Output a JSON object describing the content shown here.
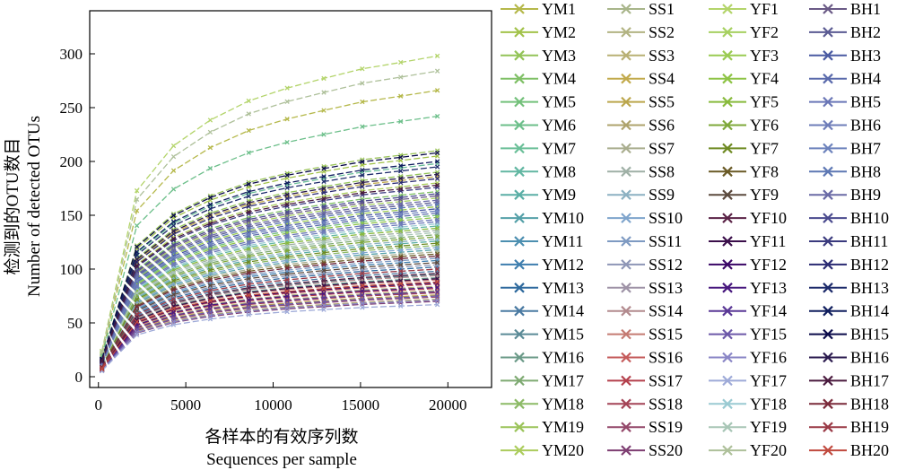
{
  "chart_data": {
    "type": "line",
    "xlabel_cn": "各样本的有效序列数",
    "xlabel_en": "Sequences per sample",
    "ylabel_cn": "检测到的OTU数目",
    "ylabel_en": "Number of detected OTUs",
    "x_ticks": [
      0,
      5000,
      10000,
      15000,
      20000
    ],
    "x_tick_labels": [
      "0",
      "5000",
      "10000",
      "15000",
      "20000"
    ],
    "y_ticks": [
      0,
      50,
      100,
      150,
      200,
      250,
      300
    ],
    "y_tick_labels": [
      "0",
      "50",
      "100",
      "150",
      "200",
      "250",
      "300"
    ],
    "xlim": [
      -500,
      22500
    ],
    "ylim": [
      -10,
      340
    ],
    "grid": false,
    "legend_position": "right",
    "x": [
      200,
      2200,
      4300,
      6400,
      8600,
      10800,
      12900,
      15100,
      17300,
      19400
    ],
    "growth_shape": [
      0.08,
      0.58,
      0.72,
      0.8,
      0.86,
      0.9,
      0.93,
      0.96,
      0.98,
      1.0
    ],
    "series": [
      {
        "name": "YM1",
        "color": "#b5b84a",
        "final": 266
      },
      {
        "name": "YM2",
        "color": "#a2c24a",
        "final": 205
      },
      {
        "name": "YM3",
        "color": "#93c458",
        "final": 190
      },
      {
        "name": "YM4",
        "color": "#7fc066",
        "final": 172
      },
      {
        "name": "YM5",
        "color": "#73c07a",
        "final": 150
      },
      {
        "name": "YM6",
        "color": "#6cbf8a",
        "final": 242
      },
      {
        "name": "YM7",
        "color": "#6abf98",
        "final": 198
      },
      {
        "name": "YM8",
        "color": "#62b7a2",
        "final": 140
      },
      {
        "name": "YM9",
        "color": "#5aaea5",
        "final": 126
      },
      {
        "name": "YM10",
        "color": "#54a0a8",
        "final": 118
      },
      {
        "name": "YM11",
        "color": "#4c8fb0",
        "final": 112
      },
      {
        "name": "YM12",
        "color": "#3e7eae",
        "final": 108
      },
      {
        "name": "YM13",
        "color": "#2f6a9e",
        "final": 102
      },
      {
        "name": "YM14",
        "color": "#4a7aa2",
        "final": 98
      },
      {
        "name": "YM15",
        "color": "#5a8a96",
        "final": 95
      },
      {
        "name": "YM16",
        "color": "#6b9a88",
        "final": 92
      },
      {
        "name": "YM17",
        "color": "#7eaa72",
        "final": 132
      },
      {
        "name": "YM18",
        "color": "#8cba66",
        "final": 122
      },
      {
        "name": "YM19",
        "color": "#9bc45a",
        "final": 210
      },
      {
        "name": "YM20",
        "color": "#abcc5c",
        "final": 180
      },
      {
        "name": "SS1",
        "color": "#a8b58a",
        "final": 88
      },
      {
        "name": "SS2",
        "color": "#b2b382",
        "final": 84
      },
      {
        "name": "SS3",
        "color": "#b8b074",
        "final": 80
      },
      {
        "name": "SS4",
        "color": "#c2aa4c",
        "final": 186
      },
      {
        "name": "SS5",
        "color": "#bba64c",
        "final": 76
      },
      {
        "name": "SS6",
        "color": "#aea36c",
        "final": 72
      },
      {
        "name": "SS7",
        "color": "#a9ad8e",
        "final": 116
      },
      {
        "name": "SS8",
        "color": "#9fb0a6",
        "final": 136
      },
      {
        "name": "SS9",
        "color": "#8cb1c2",
        "final": 128
      },
      {
        "name": "SS10",
        "color": "#7ea4cc",
        "final": 120
      },
      {
        "name": "SS11",
        "color": "#7e9ac2",
        "final": 110
      },
      {
        "name": "SS12",
        "color": "#8e96b6",
        "final": 104
      },
      {
        "name": "SS13",
        "color": "#9e92a6",
        "final": 100
      },
      {
        "name": "SS14",
        "color": "#b28a8e",
        "final": 94
      },
      {
        "name": "SS15",
        "color": "#c47a72",
        "final": 90
      },
      {
        "name": "SS16",
        "color": "#c45a5a",
        "final": 86
      },
      {
        "name": "SS17",
        "color": "#b4404c",
        "final": 82
      },
      {
        "name": "SS18",
        "color": "#a44456",
        "final": 78
      },
      {
        "name": "SS19",
        "color": "#94486a",
        "final": 74
      },
      {
        "name": "SS20",
        "color": "#7e3e72",
        "final": 70
      },
      {
        "name": "YF1",
        "color": "#b3d46a",
        "final": 298
      },
      {
        "name": "YF2",
        "color": "#a6d060",
        "final": 166
      },
      {
        "name": "YF3",
        "color": "#9acb52",
        "final": 158
      },
      {
        "name": "YF4",
        "color": "#8ec446",
        "final": 148
      },
      {
        "name": "YF5",
        "color": "#88ba3c",
        "final": 138
      },
      {
        "name": "YF6",
        "color": "#7ea83a",
        "final": 130
      },
      {
        "name": "YF7",
        "color": "#6e8a22",
        "final": 124
      },
      {
        "name": "YF8",
        "color": "#6a5a26",
        "final": 114
      },
      {
        "name": "YF9",
        "color": "#5c4a3e",
        "final": 106
      },
      {
        "name": "YF10",
        "color": "#5a2246",
        "final": 96
      },
      {
        "name": "YF11",
        "color": "#3a0e4a",
        "final": 91
      },
      {
        "name": "YF12",
        "color": "#3a0666",
        "final": 87
      },
      {
        "name": "YF13",
        "color": "#48187e",
        "final": 83
      },
      {
        "name": "YF14",
        "color": "#5a3896",
        "final": 79
      },
      {
        "name": "YF15",
        "color": "#6c58a8",
        "final": 75
      },
      {
        "name": "YF16",
        "color": "#8a86c6",
        "final": 71
      },
      {
        "name": "YF17",
        "color": "#9eaad8",
        "final": 67
      },
      {
        "name": "YF18",
        "color": "#9acad2",
        "final": 142
      },
      {
        "name": "YF19",
        "color": "#a8c6b6",
        "final": 134
      },
      {
        "name": "YF20",
        "color": "#aec09a",
        "final": 284
      },
      {
        "name": "BH1",
        "color": "#6a5a86",
        "final": 168
      },
      {
        "name": "BH2",
        "color": "#5a5a92",
        "final": 162
      },
      {
        "name": "BH3",
        "color": "#4a5aa2",
        "final": 156
      },
      {
        "name": "BH4",
        "color": "#5a6aac",
        "final": 152
      },
      {
        "name": "BH5",
        "color": "#6a76b6",
        "final": 146
      },
      {
        "name": "BH6",
        "color": "#6e7cb8",
        "final": 144
      },
      {
        "name": "BH7",
        "color": "#6c82bc",
        "final": 154
      },
      {
        "name": "BH8",
        "color": "#5e78b4",
        "final": 160
      },
      {
        "name": "BH9",
        "color": "#6a6aa6",
        "final": 164
      },
      {
        "name": "BH10",
        "color": "#4a4a8e",
        "final": 170
      },
      {
        "name": "BH11",
        "color": "#3a3a7e",
        "final": 176
      },
      {
        "name": "BH12",
        "color": "#2a2a72",
        "final": 184
      },
      {
        "name": "BH13",
        "color": "#1c2a6a",
        "final": 195
      },
      {
        "name": "BH14",
        "color": "#101e5e",
        "final": 200
      },
      {
        "name": "BH15",
        "color": "#0a0a4a",
        "final": 208
      },
      {
        "name": "BH16",
        "color": "#2a1a4e",
        "final": 188
      },
      {
        "name": "BH17",
        "color": "#4a1a3e",
        "final": 178
      },
      {
        "name": "BH18",
        "color": "#7a2a3a",
        "final": 112
      },
      {
        "name": "BH19",
        "color": "#9a3a46",
        "final": 100
      },
      {
        "name": "BH20",
        "color": "#c04a3e",
        "final": 88
      }
    ]
  }
}
